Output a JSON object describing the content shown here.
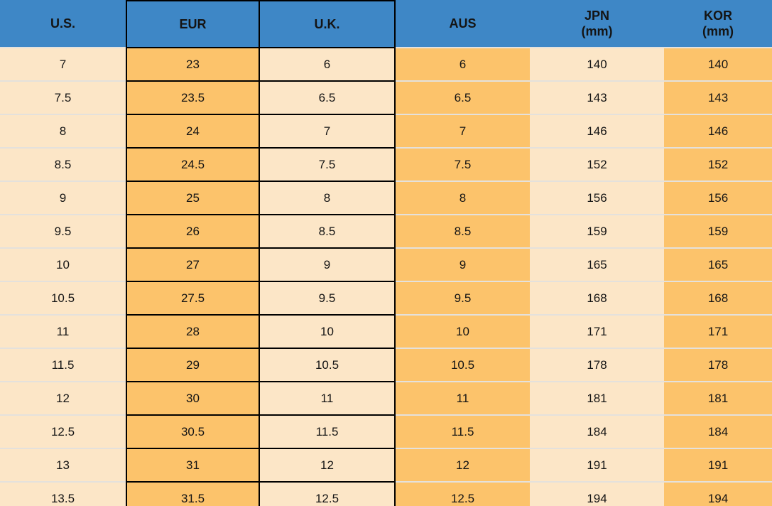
{
  "chart_data": {
    "type": "table",
    "columns": [
      "U.S.",
      "EUR",
      "U.K.",
      "AUS",
      "JPN (mm)",
      "KOR (mm)"
    ],
    "rows": [
      [
        "7",
        "23",
        "6",
        "6",
        "140",
        "140"
      ],
      [
        "7.5",
        "23.5",
        "6.5",
        "6.5",
        "143",
        "143"
      ],
      [
        "8",
        "24",
        "7",
        "7",
        "146",
        "146"
      ],
      [
        "8.5",
        "24.5",
        "7.5",
        "7.5",
        "152",
        "152"
      ],
      [
        "9",
        "25",
        "8",
        "8",
        "156",
        "156"
      ],
      [
        "9.5",
        "26",
        "8.5",
        "8.5",
        "159",
        "159"
      ],
      [
        "10",
        "27",
        "9",
        "9",
        "165",
        "165"
      ],
      [
        "10.5",
        "27.5",
        "9.5",
        "9.5",
        "168",
        "168"
      ],
      [
        "11",
        "28",
        "10",
        "10",
        "171",
        "171"
      ],
      [
        "11.5",
        "29",
        "10.5",
        "10.5",
        "178",
        "178"
      ],
      [
        "12",
        "30",
        "11",
        "11",
        "181",
        "181"
      ],
      [
        "12.5",
        "30.5",
        "11.5",
        "11.5",
        "184",
        "184"
      ],
      [
        "13",
        "31",
        "12",
        "12",
        "191",
        "191"
      ],
      [
        "13.5",
        "31.5",
        "12.5",
        "12.5",
        "194",
        "194"
      ]
    ]
  },
  "table": {
    "columns": [
      {
        "key": "us",
        "label": "U.S.",
        "sub": "",
        "shade": "cream",
        "boxed": false
      },
      {
        "key": "eur",
        "label": "EUR",
        "sub": "",
        "shade": "orange",
        "boxed": true
      },
      {
        "key": "uk",
        "label": "U.K.",
        "sub": "",
        "shade": "cream",
        "boxed": true
      },
      {
        "key": "aus",
        "label": "AUS",
        "sub": "",
        "shade": "orange",
        "boxed": false
      },
      {
        "key": "jpn",
        "label": "JPN",
        "sub": "(mm)",
        "shade": "cream",
        "boxed": false
      },
      {
        "key": "kor",
        "label": "KOR",
        "sub": "(mm)",
        "shade": "orange",
        "boxed": false
      }
    ]
  },
  "colors": {
    "header_bg": "#3E87C6",
    "orange": "#FCC36B",
    "cream": "#FCE6C7",
    "row_separator": "#E4E1DC",
    "box_border": "#000000",
    "text": "#141414"
  }
}
